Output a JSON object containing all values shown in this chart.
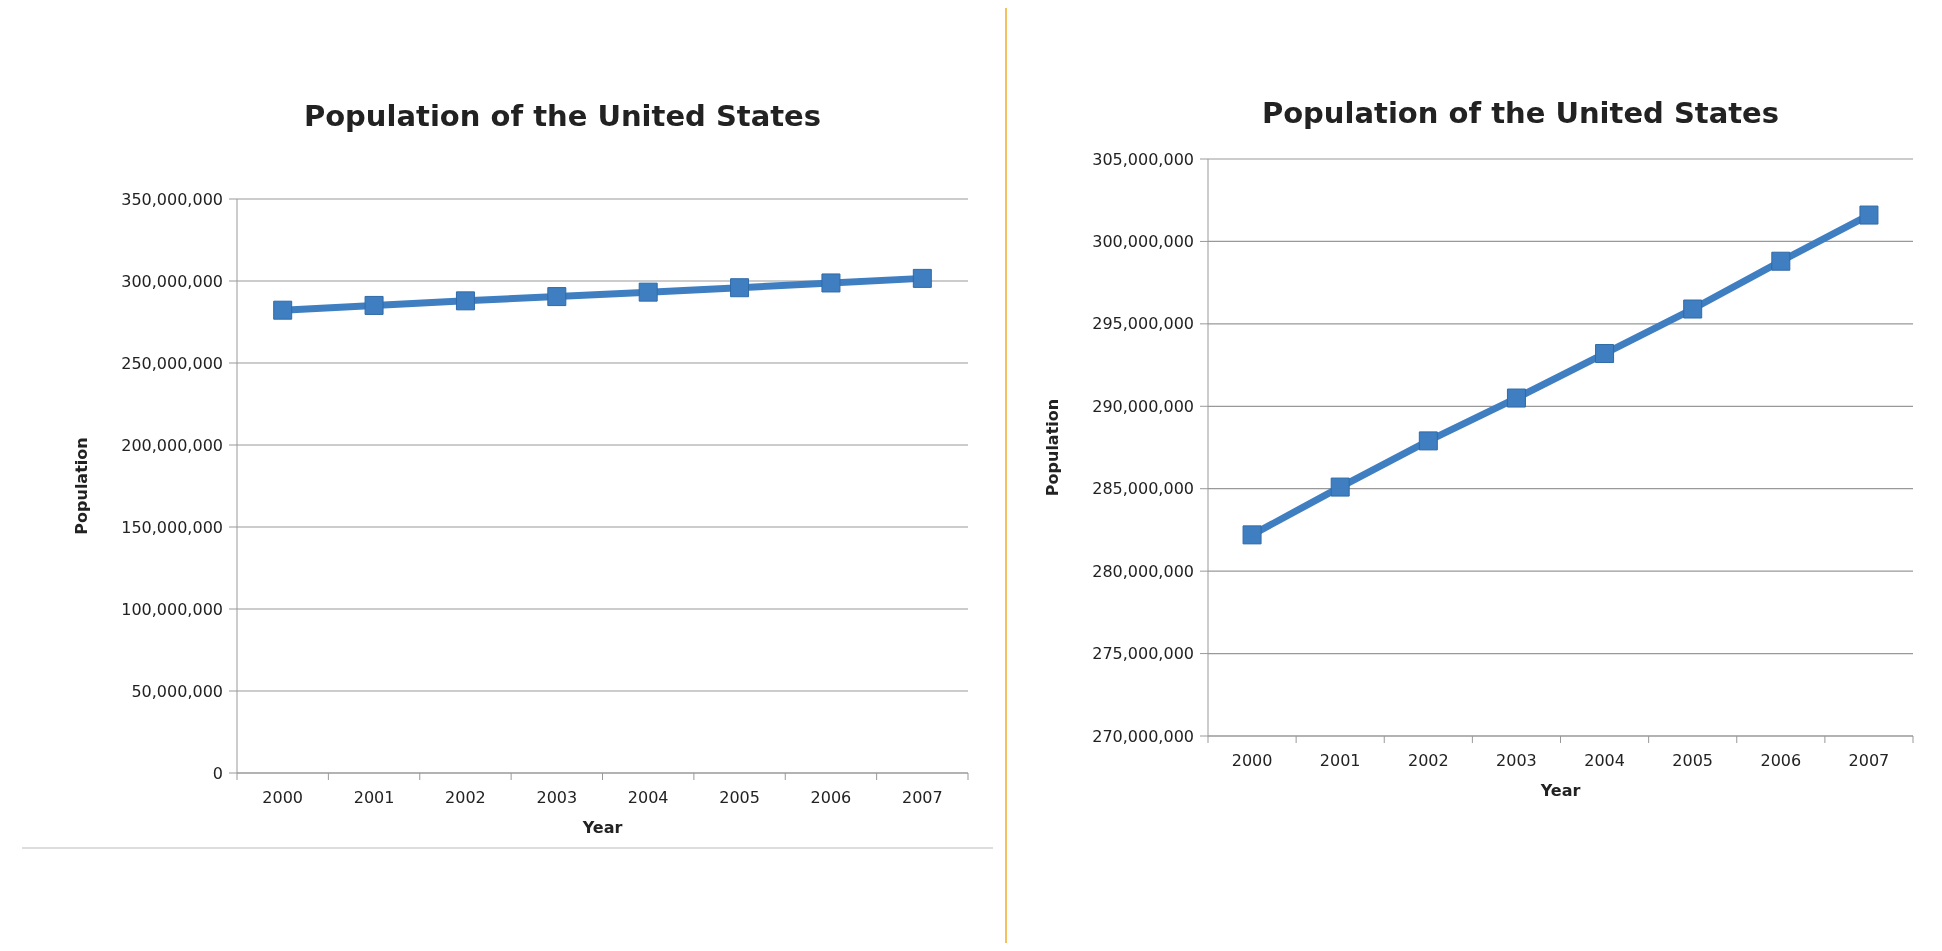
{
  "chart_data": [
    {
      "type": "line",
      "title": "Population of the United States",
      "xlabel": "Year",
      "ylabel": "Population",
      "categories": [
        "2000",
        "2001",
        "2002",
        "2003",
        "2004",
        "2005",
        "2006",
        "2007"
      ],
      "series": [
        {
          "color": "#3f7fc1",
          "values": [
            282200000,
            285100000,
            287900000,
            290500000,
            293200000,
            295900000,
            298800000,
            301600000
          ]
        }
      ],
      "ylim": [
        0,
        350000000
      ],
      "yticks": [
        {
          "value": 0,
          "label": "0"
        },
        {
          "value": 50000000,
          "label": "50,000,000"
        },
        {
          "value": 100000000,
          "label": "100,000,000"
        },
        {
          "value": 150000000,
          "label": "150,000,000"
        },
        {
          "value": 200000000,
          "label": "200,000,000"
        },
        {
          "value": 250000000,
          "label": "250,000,000"
        },
        {
          "value": 300000000,
          "label": "300,000,000"
        },
        {
          "value": 350000000,
          "label": "350,000,000"
        }
      ],
      "grid": "y",
      "marker": "square",
      "line_style": "solid"
    },
    {
      "type": "line",
      "title": "Population of the United States",
      "xlabel": "Year",
      "ylabel": "Population",
      "categories": [
        "2000",
        "2001",
        "2002",
        "2003",
        "2004",
        "2005",
        "2006",
        "2007"
      ],
      "series": [
        {
          "color": "#3f7fc1",
          "values": [
            282200000,
            285100000,
            287900000,
            290500000,
            293200000,
            295900000,
            298800000,
            301600000
          ]
        }
      ],
      "ylim": [
        270000000,
        305000000
      ],
      "yticks": [
        {
          "value": 270000000,
          "label": "270,000,000"
        },
        {
          "value": 275000000,
          "label": "275,000,000"
        },
        {
          "value": 280000000,
          "label": "280,000,000"
        },
        {
          "value": 285000000,
          "label": "285,000,000"
        },
        {
          "value": 290000000,
          "label": "290,000,000"
        },
        {
          "value": 295000000,
          "label": "295,000,000"
        },
        {
          "value": 300000000,
          "label": "300,000,000"
        },
        {
          "value": 305000000,
          "label": "305,000,000"
        }
      ],
      "grid": "y",
      "marker": "square",
      "line_style": "solid"
    }
  ]
}
